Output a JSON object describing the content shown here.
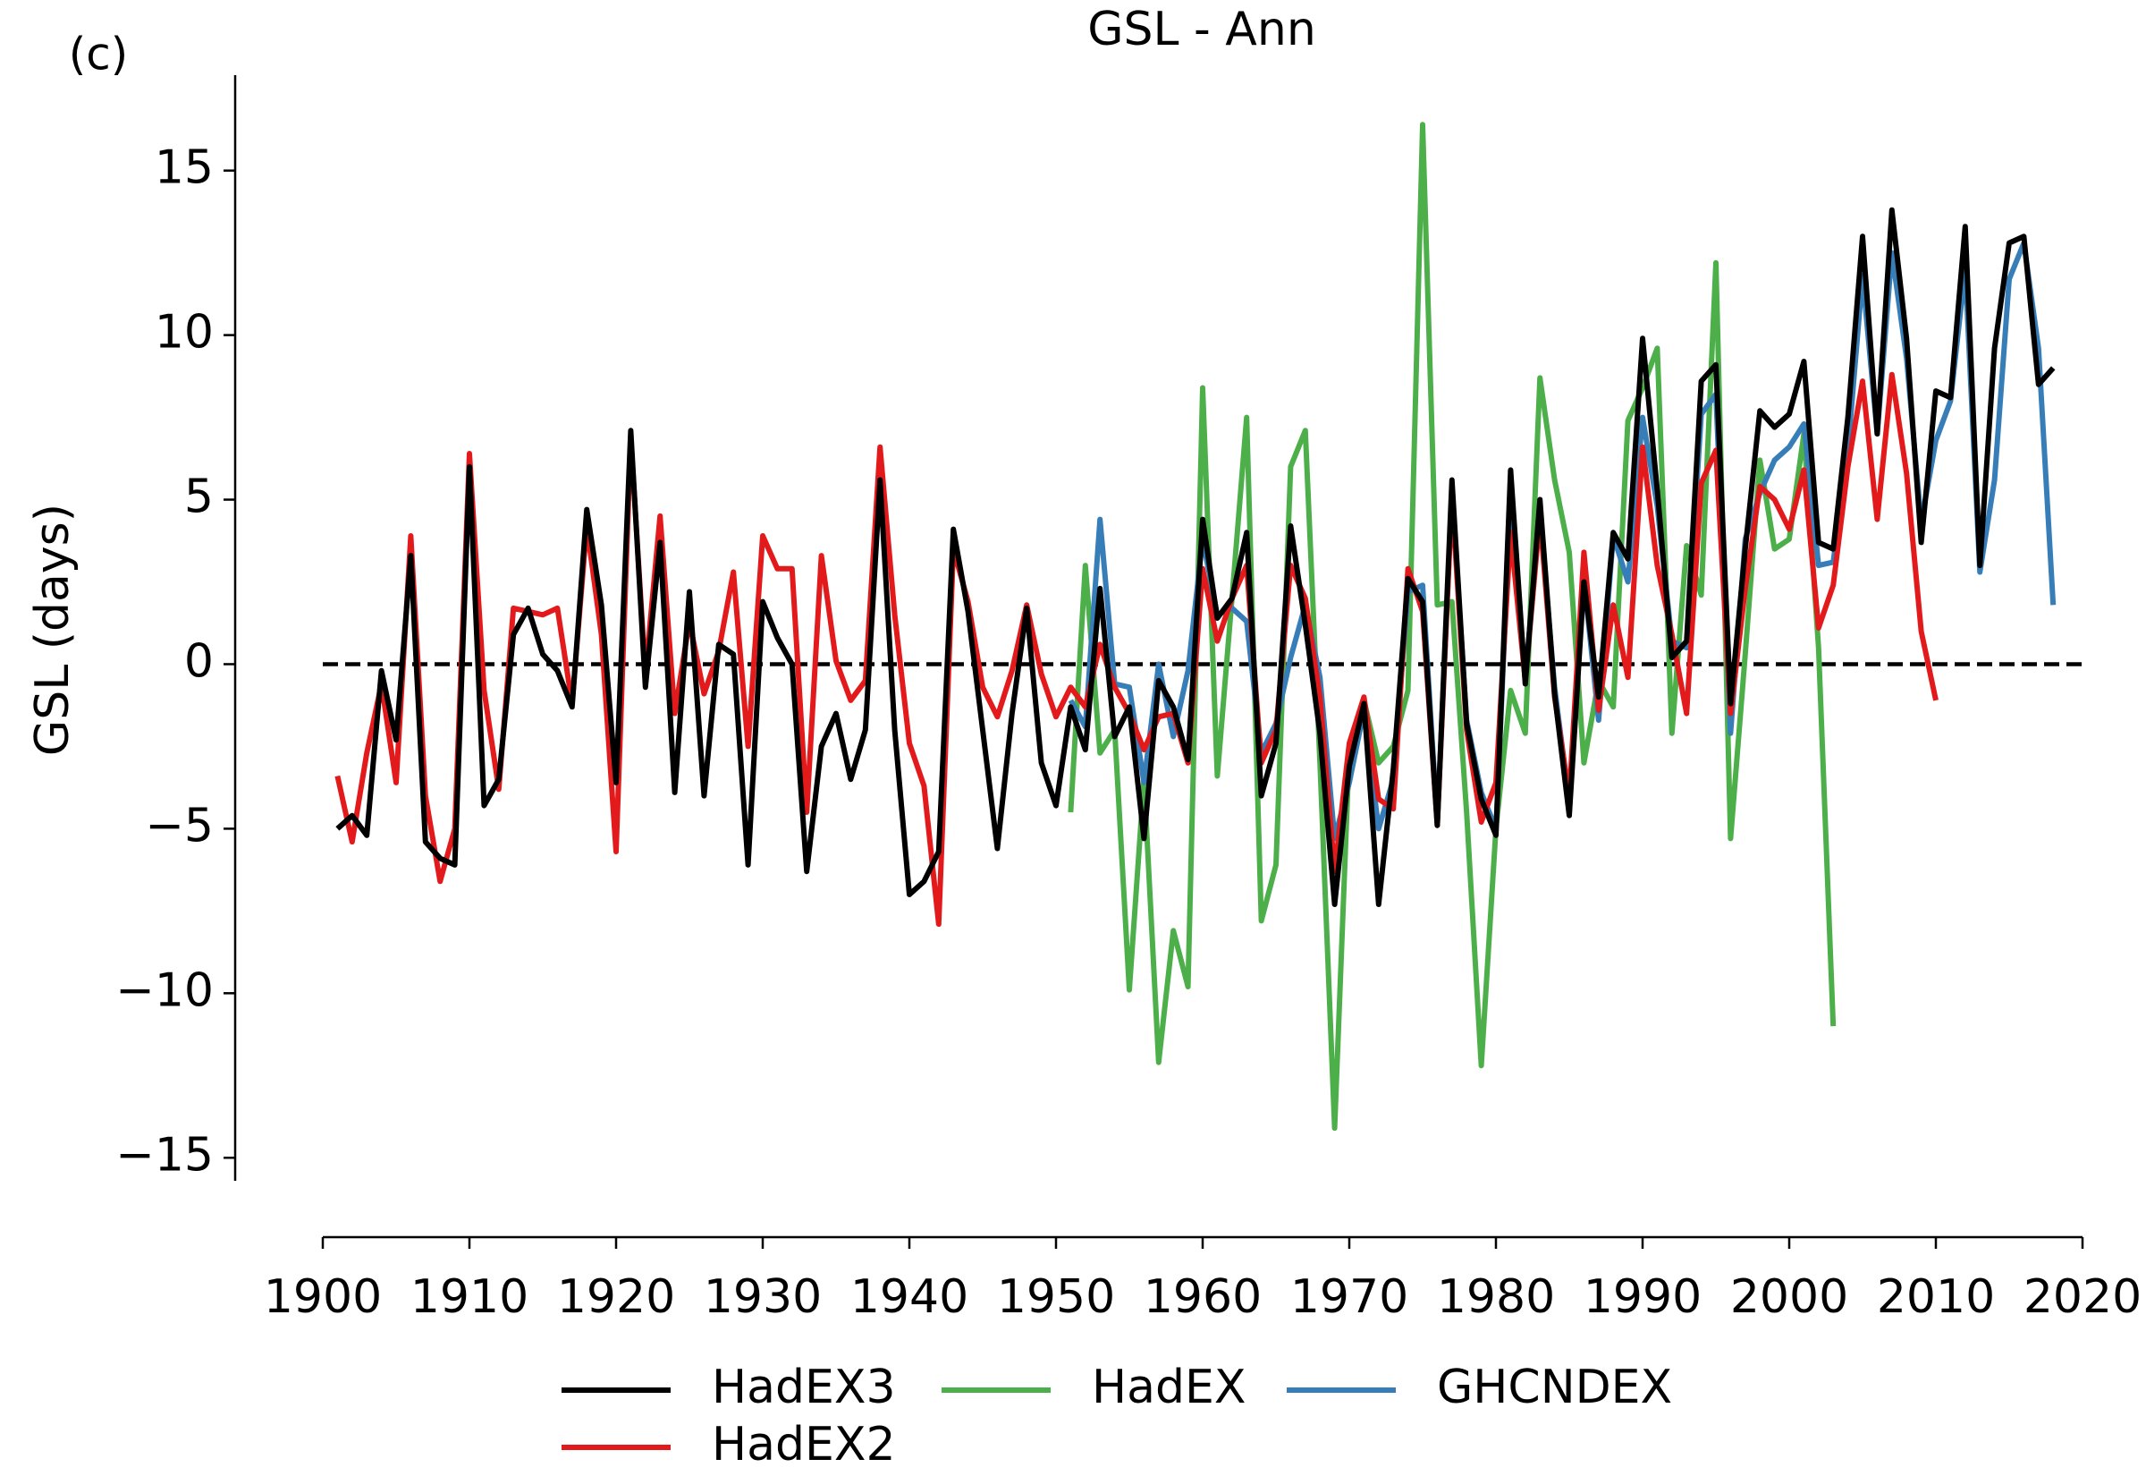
{
  "chart_data": {
    "type": "line",
    "annotation": "(c)",
    "title": "GSL - Ann",
    "y_label": "GSL (days)",
    "xlim": [
      1900,
      2020
    ],
    "xticks": [
      1900,
      1910,
      1920,
      1930,
      1940,
      1950,
      1960,
      1970,
      1980,
      1990,
      2000,
      2010,
      2020
    ],
    "ylim": [
      -15.7,
      17.9
    ],
    "yticks": [
      {
        "value": -15,
        "label": "−15"
      },
      {
        "value": -10,
        "label": "−10"
      },
      {
        "value": -5,
        "label": "−5"
      },
      0,
      5,
      10,
      15
    ],
    "reference_line": 0,
    "legend": "lower center",
    "x": [
      1901,
      1902,
      1903,
      1904,
      1905,
      1906,
      1907,
      1908,
      1909,
      1910,
      1911,
      1912,
      1913,
      1914,
      1915,
      1916,
      1917,
      1918,
      1919,
      1920,
      1921,
      1922,
      1923,
      1924,
      1925,
      1926,
      1927,
      1928,
      1929,
      1930,
      1931,
      1932,
      1933,
      1934,
      1935,
      1936,
      1937,
      1938,
      1939,
      1940,
      1941,
      1942,
      1943,
      1944,
      1945,
      1946,
      1947,
      1948,
      1949,
      1950,
      1951,
      1952,
      1953,
      1954,
      1955,
      1956,
      1957,
      1958,
      1959,
      1960,
      1961,
      1962,
      1963,
      1964,
      1965,
      1966,
      1967,
      1968,
      1969,
      1970,
      1971,
      1972,
      1973,
      1974,
      1975,
      1976,
      1977,
      1978,
      1979,
      1980,
      1981,
      1982,
      1983,
      1984,
      1985,
      1986,
      1987,
      1988,
      1989,
      1990,
      1991,
      1992,
      1993,
      1994,
      1995,
      1996,
      1997,
      1998,
      1999,
      2000,
      2001,
      2002,
      2003,
      2004,
      2005,
      2006,
      2007,
      2008,
      2009,
      2010,
      2011,
      2012,
      2013,
      2014,
      2015,
      2016,
      2017,
      2018
    ],
    "series": [
      {
        "name": "HadEX3",
        "color": "#000000",
        "values": [
          -5.0,
          -4.6,
          -5.2,
          -0.2,
          -2.3,
          3.3,
          -5.4,
          -5.9,
          -6.1,
          6.0,
          -4.3,
          -3.5,
          0.9,
          1.7,
          0.3,
          -0.2,
          -1.3,
          4.7,
          1.8,
          -3.6,
          7.1,
          -0.7,
          3.7,
          -3.9,
          2.2,
          -4.0,
          0.6,
          0.3,
          -6.1,
          1.9,
          0.8,
          0.0,
          -6.3,
          -2.5,
          -1.5,
          -3.5,
          -2.0,
          5.6,
          -2.0,
          -7.0,
          -6.6,
          -5.7,
          4.1,
          1.6,
          -2.0,
          -5.6,
          -1.5,
          1.7,
          -3.0,
          -4.3,
          -1.3,
          -2.6,
          2.3,
          -2.2,
          -1.3,
          -5.3,
          -0.5,
          -1.3,
          -2.9,
          4.4,
          1.4,
          2.0,
          4.0,
          -4.0,
          -2.4,
          4.2,
          1.2,
          -2.1,
          -7.3,
          -3.1,
          -1.2,
          -7.3,
          -3.2,
          2.6,
          1.9,
          -4.9,
          5.6,
          -1.8,
          -4.1,
          -5.2,
          5.9,
          -0.6,
          5.0,
          -0.9,
          -4.6,
          2.5,
          -1.0,
          4.0,
          3.2,
          9.9,
          5.3,
          0.2,
          0.7,
          8.6,
          9.1,
          -1.2,
          3.5,
          7.7,
          7.2,
          7.6,
          9.2,
          3.7,
          3.5,
          7.5,
          13.0,
          7.0,
          13.8,
          9.9,
          3.7,
          8.3,
          8.1,
          13.3,
          3.0,
          9.6,
          12.8,
          13.0,
          8.5,
          9.0
        ]
      },
      {
        "name": "HadEX2",
        "color": "#e31a1c",
        "values": [
          -3.4,
          -5.4,
          -2.7,
          -0.6,
          -3.6,
          3.9,
          -4.0,
          -6.6,
          -5.0,
          6.4,
          -0.8,
          -3.8,
          1.7,
          1.6,
          1.5,
          1.7,
          -1.2,
          4.2,
          0.9,
          -5.7,
          6.9,
          -0.3,
          4.5,
          -1.5,
          1.3,
          -0.9,
          0.4,
          2.8,
          -2.5,
          3.9,
          2.9,
          2.9,
          -4.5,
          3.3,
          0.1,
          -1.1,
          -0.5,
          6.6,
          1.5,
          -2.4,
          -3.7,
          -7.9,
          3.5,
          1.9,
          -0.7,
          -1.6,
          -0.2,
          1.8,
          -0.3,
          -1.6,
          -0.7,
          -1.3,
          0.6,
          -0.7,
          -1.5,
          -2.6,
          -1.6,
          -1.5,
          -3.0,
          2.9,
          0.7,
          2.0,
          3.0,
          -3.0,
          -2.0,
          3.0,
          2.0,
          -1.0,
          -6.3,
          -2.4,
          -1.0,
          -4.1,
          -4.4,
          2.9,
          1.6,
          -4.9,
          5.1,
          -2.0,
          -4.8,
          -3.6,
          4.0,
          -0.5,
          4.5,
          -1.0,
          -4.0,
          3.4,
          -1.4,
          1.8,
          -0.4,
          6.6,
          3.0,
          0.9,
          -1.5,
          5.5,
          6.5,
          -1.5,
          2.3,
          5.4,
          5.0,
          4.1,
          5.9,
          1.1,
          2.4,
          6.0,
          8.6,
          4.4,
          8.8,
          5.8,
          1.0,
          -1.1,
          null,
          null,
          null,
          null,
          null,
          null,
          null,
          null
        ]
      },
      {
        "name": "HadEX",
        "color": "#4daf4a",
        "values": [
          null,
          null,
          null,
          null,
          null,
          null,
          null,
          null,
          null,
          null,
          null,
          null,
          null,
          null,
          null,
          null,
          null,
          null,
          null,
          null,
          null,
          null,
          null,
          null,
          null,
          null,
          null,
          null,
          null,
          null,
          null,
          null,
          null,
          null,
          null,
          null,
          null,
          null,
          null,
          null,
          null,
          null,
          null,
          null,
          null,
          null,
          null,
          null,
          null,
          null,
          -4.5,
          3.0,
          -2.7,
          -2.0,
          -9.9,
          -3.5,
          -12.1,
          -8.1,
          -9.8,
          8.4,
          -3.4,
          2.0,
          7.5,
          -7.8,
          -6.1,
          6.0,
          7.1,
          -3.0,
          -14.1,
          -2.6,
          -1.1,
          -3.0,
          -2.5,
          -0.8,
          16.4,
          1.8,
          1.9,
          -4.5,
          -12.2,
          -5.0,
          -0.8,
          -2.1,
          8.7,
          5.6,
          3.4,
          -3.0,
          -0.5,
          -1.3,
          7.4,
          8.4,
          9.6,
          -2.1,
          3.6,
          2.1,
          12.2,
          -5.3,
          0.3,
          6.2,
          3.5,
          3.8,
          7.0,
          0.5,
          -11.0,
          null,
          null,
          null,
          null,
          null,
          null,
          null,
          null,
          null,
          null,
          null,
          null,
          null,
          null,
          null
        ]
      },
      {
        "name": "GHCNDEX",
        "color": "#377eb8",
        "values": [
          null,
          null,
          null,
          null,
          null,
          null,
          null,
          null,
          null,
          null,
          null,
          null,
          null,
          null,
          null,
          null,
          null,
          null,
          null,
          null,
          null,
          null,
          null,
          null,
          null,
          null,
          null,
          null,
          null,
          null,
          null,
          null,
          null,
          null,
          null,
          null,
          null,
          null,
          null,
          null,
          null,
          null,
          null,
          null,
          null,
          null,
          null,
          null,
          null,
          null,
          -1.1,
          -1.9,
          4.4,
          -0.6,
          -0.7,
          -3.6,
          0.0,
          -2.2,
          -0.2,
          3.8,
          1.5,
          1.7,
          1.3,
          -2.7,
          -1.8,
          0.2,
          1.8,
          -0.4,
          -5.3,
          -3.6,
          -1.4,
          -5.0,
          -3.5,
          2.2,
          2.4,
          -4.8,
          5.2,
          -1.7,
          -3.9,
          -5.0,
          5.0,
          -0.4,
          4.6,
          -0.7,
          -4.2,
          2.6,
          -1.7,
          3.9,
          2.5,
          7.5,
          4.8,
          0.7,
          0.5,
          7.6,
          8.2,
          -2.1,
          3.8,
          5.2,
          6.2,
          6.6,
          7.3,
          3.0,
          3.1,
          6.5,
          11.8,
          7.0,
          12.5,
          9.3,
          4.3,
          6.8,
          8.0,
          12.0,
          2.8,
          5.6,
          11.7,
          12.8,
          9.6,
          1.8
        ]
      }
    ]
  }
}
